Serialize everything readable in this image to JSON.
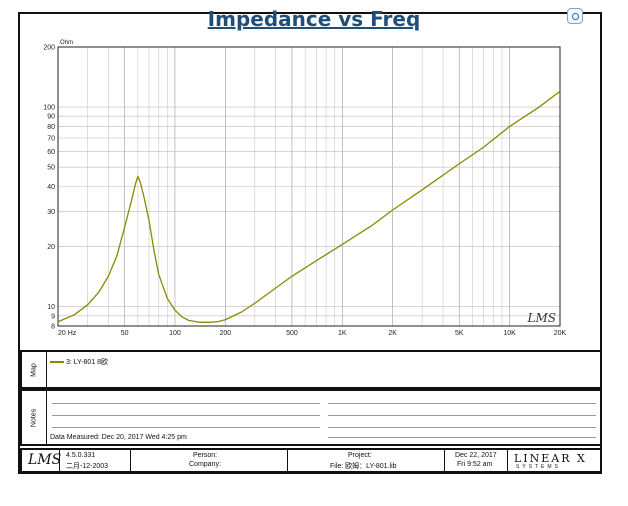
{
  "title": "Impedance vs Freq",
  "chart_data": {
    "type": "line",
    "title": "Impedance vs Freq",
    "ylabel": "Ohm",
    "xlabel": "",
    "x_scale": "log",
    "y_scale": "log",
    "xlim": [
      20,
      20000
    ],
    "ylim": [
      8,
      200
    ],
    "x_ticks": [
      {
        "v": 20,
        "label": "20  Hz"
      },
      {
        "v": 50,
        "label": "50"
      },
      {
        "v": 100,
        "label": "100"
      },
      {
        "v": 200,
        "label": "200"
      },
      {
        "v": 500,
        "label": "500"
      },
      {
        "v": 1000,
        "label": "1K"
      },
      {
        "v": 2000,
        "label": "2K"
      },
      {
        "v": 5000,
        "label": "5K"
      },
      {
        "v": 10000,
        "label": "10K"
      },
      {
        "v": 20000,
        "label": "20K"
      }
    ],
    "y_ticks": [
      {
        "v": 8,
        "label": "8"
      },
      {
        "v": 9,
        "label": "9"
      },
      {
        "v": 10,
        "label": "10"
      },
      {
        "v": 20,
        "label": "20"
      },
      {
        "v": 30,
        "label": "30"
      },
      {
        "v": 40,
        "label": "40"
      },
      {
        "v": 50,
        "label": "50"
      },
      {
        "v": 60,
        "label": "60"
      },
      {
        "v": 70,
        "label": "70"
      },
      {
        "v": 80,
        "label": "80"
      },
      {
        "v": 90,
        "label": "90"
      },
      {
        "v": 100,
        "label": "100"
      },
      {
        "v": 200,
        "label": "200"
      }
    ],
    "grid": true,
    "watermark": "LMS",
    "line_color": "#8a8a00",
    "series": [
      {
        "name": "3: LY-801  8欧",
        "x": [
          20,
          25,
          30,
          35,
          40,
          45,
          50,
          55,
          58,
          60,
          62,
          65,
          70,
          75,
          80,
          90,
          100,
          110,
          120,
          140,
          160,
          180,
          200,
          250,
          300,
          400,
          500,
          700,
          1000,
          1500,
          2000,
          3000,
          5000,
          7000,
          10000,
          15000,
          20000
        ],
        "values": [
          8.4,
          9.1,
          10.2,
          11.8,
          14.2,
          18,
          25,
          34,
          41,
          45,
          42,
          36,
          27,
          19,
          14.5,
          11,
          9.6,
          8.9,
          8.55,
          8.35,
          8.35,
          8.4,
          8.6,
          9.4,
          10.4,
          12.4,
          14.2,
          17,
          20.5,
          25.5,
          30.5,
          38.5,
          52,
          63,
          80,
          100,
          120
        ]
      }
    ]
  },
  "map": {
    "tab_label": "Map",
    "legend_label": "3: LY-801  8欧"
  },
  "notes": {
    "tab_label": "Notes",
    "data_measured": "Data Measured: Dec 20, 2017  Wed   4:25 pm"
  },
  "footer": {
    "logo": "LMS",
    "version": "4.5.0.331",
    "version_date": "二月-12-2003",
    "person_label": "Person:",
    "company_label": "Company:",
    "project_label": "Project:",
    "file_label": "File: 欧姆：LY-801.lib",
    "date": "Dec 22, 2017",
    "time": "Fri  9:52 am",
    "brand": "LINEAR X",
    "brand_sub": "SYSTEMS"
  }
}
